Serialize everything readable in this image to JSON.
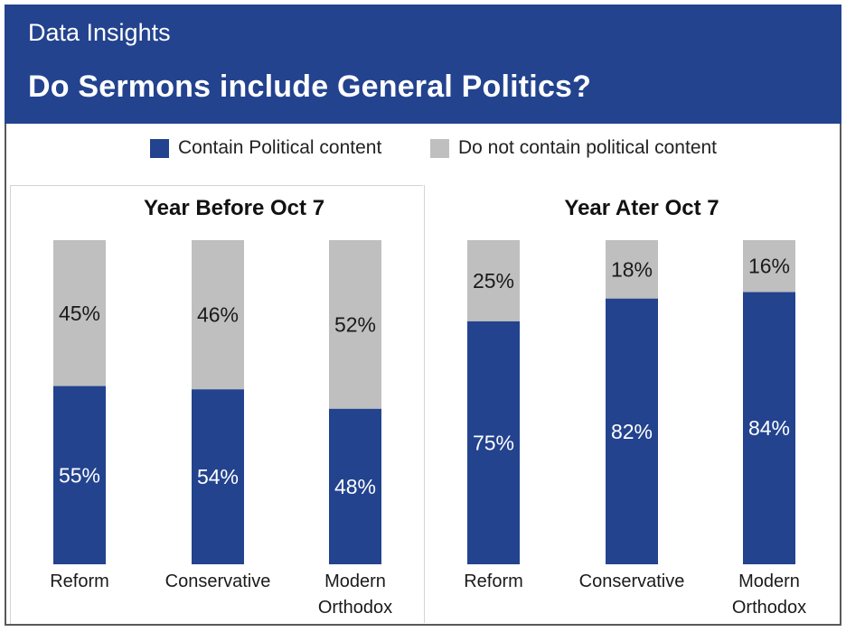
{
  "header": {
    "kicker": "Data Insights",
    "title": "Do Sermons include General Politics?"
  },
  "legend": [
    {
      "label": "Contain Political content",
      "color": "#23438f"
    },
    {
      "label": "Do not contain political content",
      "color": "#bfbfbf"
    }
  ],
  "colors": {
    "political": "#23438f",
    "non_political": "#bfbfbf",
    "header_bg": "#23438f"
  },
  "chart_data": [
    {
      "type": "bar",
      "stacked": true,
      "title": "Year Before Oct 7",
      "categories": [
        "Reform",
        "Conservative",
        "Modern Orthodox"
      ],
      "series": [
        {
          "name": "Contain Political content",
          "values": [
            55,
            54,
            48
          ],
          "labels": [
            "55%",
            "54%",
            "48%"
          ]
        },
        {
          "name": "Do not contain political content",
          "values": [
            45,
            46,
            52
          ],
          "labels": [
            "45%",
            "46%",
            "52%"
          ]
        }
      ],
      "ylim": [
        0,
        100
      ]
    },
    {
      "type": "bar",
      "stacked": true,
      "title": "Year Ater Oct 7",
      "categories": [
        "Reform",
        "Conservative",
        "Modern Orthodox"
      ],
      "series": [
        {
          "name": "Contain Political content",
          "values": [
            75,
            82,
            84
          ],
          "labels": [
            "75%",
            "82%",
            "84%"
          ]
        },
        {
          "name": "Do not contain political content",
          "values": [
            25,
            18,
            16
          ],
          "labels": [
            "25%",
            "18%",
            "16%"
          ]
        }
      ],
      "ylim": [
        0,
        100
      ]
    }
  ]
}
